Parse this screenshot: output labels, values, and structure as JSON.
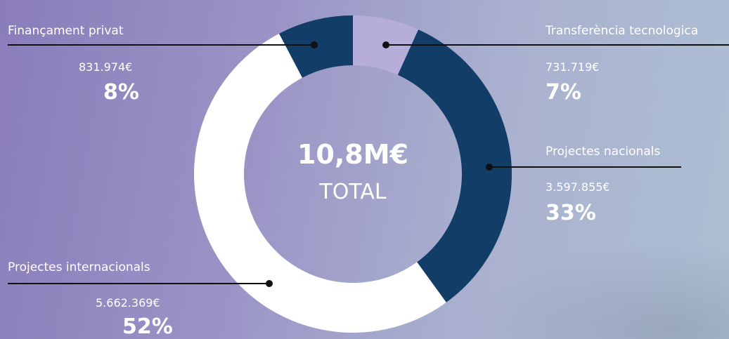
{
  "chart_data": {
    "type": "pie",
    "donut": true,
    "center": {
      "value": "10,8M€",
      "label": "TOTAL"
    },
    "slices": [
      {
        "name": "Transferència tecnologica",
        "amount": "731.719€",
        "percent_label": "7%",
        "value": 731719,
        "color": "#b7addb"
      },
      {
        "name": "Projectes nacionals",
        "amount": "3.597.855€",
        "percent_label": "33%",
        "value": 3597855,
        "color": "#113d66"
      },
      {
        "name": "Projectes internacionals",
        "amount": "5.662.369€",
        "percent_label": "52%",
        "value": 5662369,
        "color": "#ffffff"
      },
      {
        "name": "Finançament privat",
        "amount": "831.974€",
        "percent_label": "8%",
        "value": 831974,
        "color": "#113d66"
      }
    ],
    "legend": "none"
  },
  "colors": {
    "leader_line": "#111111",
    "text": "#ffffff"
  }
}
